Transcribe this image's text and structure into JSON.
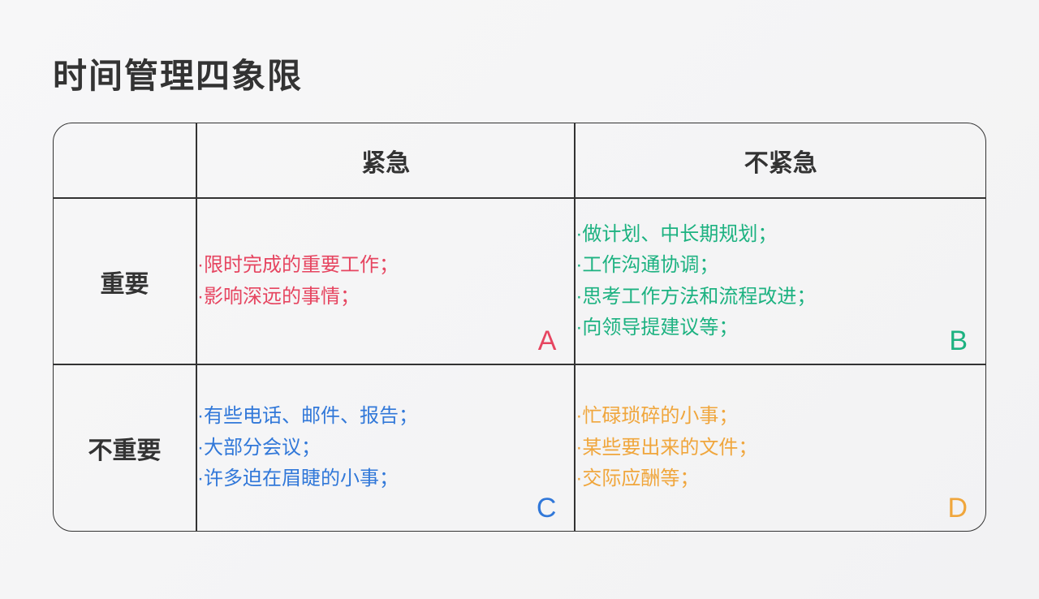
{
  "title": "时间管理四象限",
  "columns": {
    "urgent": "紧急",
    "not_urgent": "不紧急"
  },
  "rows": {
    "important": "重要",
    "not_important": "不重要"
  },
  "quadrants": {
    "A": {
      "letter": "A",
      "color": "#e64560",
      "items": [
        "·限时完成的重要工作；",
        "·影响深远的事情；"
      ]
    },
    "B": {
      "letter": "B",
      "color": "#1db281",
      "items": [
        "·做计划、中长期规划；",
        "·工作沟通协调；",
        "·思考工作方法和流程改进；",
        "·向领导提建议等；"
      ]
    },
    "C": {
      "letter": "C",
      "color": "#3178d9",
      "items": [
        "·有些电话、邮件、报告；",
        "·大部分会议；",
        "·许多迫在眉睫的小事；"
      ]
    },
    "D": {
      "letter": "D",
      "color": "#f0a63c",
      "items": [
        "·忙碌琐碎的小事；",
        "·某些要出来的文件；",
        "·交际应酬等；"
      ]
    }
  },
  "styling": {
    "title_fontsize": 42,
    "header_fontsize": 30,
    "item_fontsize": 24,
    "letter_fontsize": 34,
    "border_color": "#333333",
    "border_radius": 24,
    "background_gradient": [
      "#f7f7f8",
      "#f2f2f3"
    ],
    "title_color": "#333333",
    "header_color": "#333333"
  }
}
